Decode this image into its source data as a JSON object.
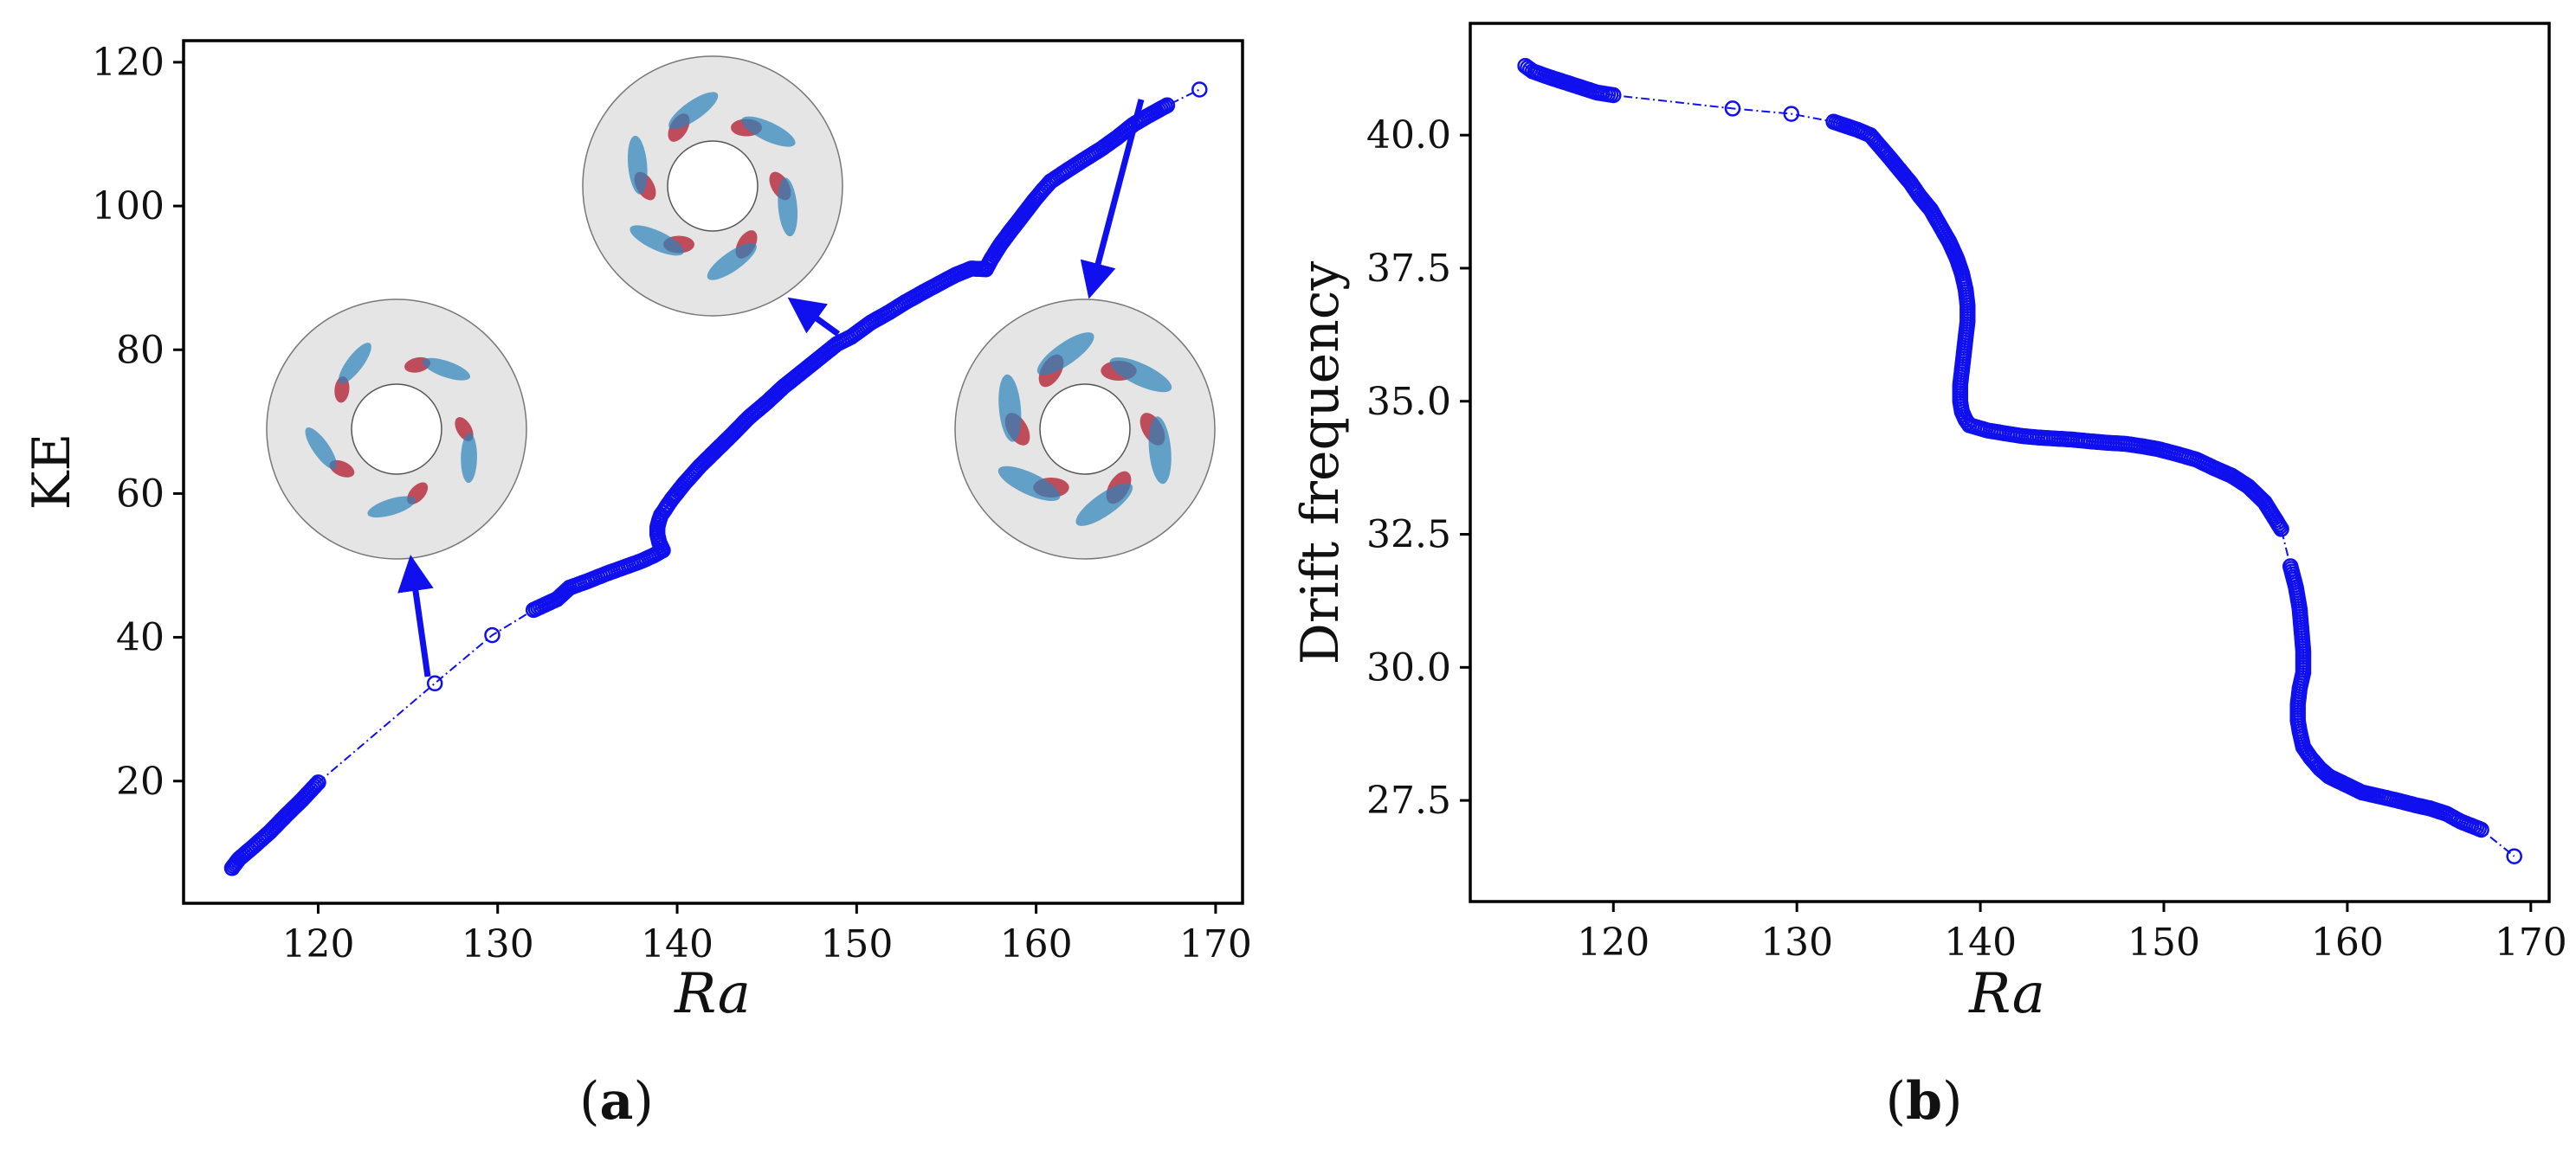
{
  "colors": {
    "series": "#1010ee",
    "frame": "#000000",
    "inset_bg": "#e5e5e5",
    "red": "#b2182b",
    "blue": "#2b83ba"
  },
  "panel_labels": {
    "a": {
      "open": "(",
      "letter": "a",
      "close": ")"
    },
    "b": {
      "open": "(",
      "letter": "b",
      "close": ")"
    }
  },
  "chart_data": [
    {
      "type": "line",
      "panel": "a",
      "xlabel": "Ra",
      "ylabel": "KE",
      "xlim": [
        112.5,
        171.5
      ],
      "ylim": [
        3,
        123
      ],
      "xticks": [
        120,
        130,
        140,
        150,
        160,
        170
      ],
      "yticks": [
        20,
        40,
        60,
        80,
        100,
        120
      ],
      "grid": false,
      "marker": "open-circle",
      "linestyle": "dash-dot",
      "x": [
        115.2,
        115.6,
        116.4,
        117.3,
        118.2,
        119.1,
        120.0,
        126.5,
        129.7,
        132.0,
        133.3,
        134.0,
        135.0,
        136.0,
        137.0,
        138.0,
        138.7,
        139.2,
        139.0,
        138.9,
        138.9,
        139.0,
        139.1,
        139.3,
        139.5,
        139.7,
        140.4,
        141.3,
        142.2,
        143.1,
        144.0,
        145.0,
        145.9,
        146.9,
        147.9,
        148.9,
        149.7,
        150.8,
        151.8,
        152.7,
        153.7,
        154.6,
        155.5,
        156.4,
        157.2,
        157.5,
        158.0,
        158.6,
        159.1,
        159.5,
        159.9,
        160.3,
        160.8,
        161.7,
        162.7,
        163.6,
        164.5,
        165.4,
        166.2,
        167.3,
        169.1
      ],
      "y": [
        7.9,
        9.2,
        10.9,
        12.9,
        15.2,
        17.4,
        19.8,
        33.6,
        40.3,
        43.8,
        45.3,
        46.9,
        47.8,
        48.8,
        49.7,
        50.6,
        51.4,
        52.1,
        53.2,
        54.3,
        55.3,
        56.3,
        57.0,
        57.7,
        58.5,
        59.2,
        61.4,
        63.9,
        66.1,
        68.3,
        70.6,
        72.7,
        74.8,
        76.8,
        78.8,
        80.8,
        81.8,
        83.8,
        85.2,
        86.6,
        88.0,
        89.2,
        90.4,
        91.3,
        91.2,
        92.6,
        94.6,
        96.6,
        98.2,
        99.5,
        100.8,
        102.0,
        103.4,
        104.9,
        106.5,
        107.9,
        109.5,
        111.3,
        112.5,
        114.0,
        116.2
      ]
    },
    {
      "type": "line",
      "panel": "b",
      "xlabel": "Ra",
      "ylabel": "Drift frequency",
      "xlim": [
        112.2,
        171.0
      ],
      "ylim": [
        25.6,
        42.1
      ],
      "xticks": [
        120,
        130,
        140,
        150,
        160,
        170
      ],
      "yticks": [
        27.5,
        30.0,
        32.5,
        35.0,
        37.5,
        40.0
      ],
      "grid": false,
      "marker": "open-circle",
      "linestyle": "dash-dot",
      "x": [
        115.2,
        115.6,
        116.4,
        117.3,
        118.2,
        119.1,
        120.0,
        126.5,
        129.7,
        132.0,
        133.3,
        134.0,
        134.5,
        135.0,
        135.6,
        136.2,
        136.7,
        137.3,
        137.8,
        138.3,
        138.7,
        139.0,
        139.2,
        139.3,
        139.3,
        139.2,
        139.1,
        139.0,
        138.9,
        138.9,
        139.0,
        139.2,
        139.4,
        140.4,
        141.3,
        142.2,
        143.1,
        144.0,
        145.0,
        145.9,
        146.9,
        147.9,
        148.9,
        149.7,
        150.8,
        151.8,
        152.7,
        153.7,
        154.6,
        155.5,
        156.4,
        156.9,
        157.2,
        157.4,
        157.5,
        157.6,
        157.6,
        157.4,
        157.3,
        157.3,
        157.4,
        157.6,
        158.0,
        158.5,
        159.0,
        159.6,
        160.2,
        160.8,
        161.7,
        162.7,
        163.6,
        164.5,
        165.4,
        166.2,
        167.3,
        169.1
      ],
      "y": [
        41.3,
        41.2,
        41.1,
        41.0,
        40.9,
        40.8,
        40.75,
        40.5,
        40.4,
        40.25,
        40.1,
        40.0,
        39.8,
        39.6,
        39.35,
        39.1,
        38.85,
        38.6,
        38.3,
        38.0,
        37.7,
        37.4,
        37.1,
        36.8,
        36.5,
        36.2,
        35.9,
        35.6,
        35.3,
        35.0,
        34.8,
        34.65,
        34.55,
        34.45,
        34.4,
        34.35,
        34.32,
        34.3,
        34.28,
        34.25,
        34.22,
        34.2,
        34.15,
        34.1,
        34.0,
        33.9,
        33.75,
        33.6,
        33.4,
        33.1,
        32.6,
        31.9,
        31.5,
        31.1,
        30.7,
        30.3,
        29.9,
        29.6,
        29.3,
        29.0,
        28.8,
        28.5,
        28.3,
        28.1,
        27.95,
        27.85,
        27.75,
        27.65,
        27.58,
        27.5,
        27.42,
        27.35,
        27.25,
        27.1,
        26.95,
        26.45
      ]
    }
  ]
}
